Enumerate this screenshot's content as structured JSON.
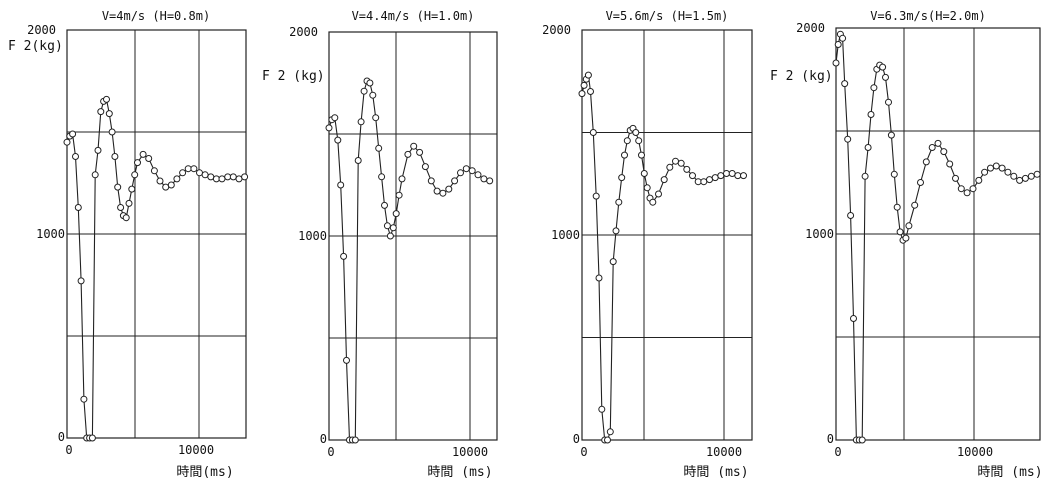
{
  "chart_data": [
    {
      "type": "line",
      "title": "V=4m/s (H=0.8m)",
      "ylabel": "F 2(kg)",
      "xlabel": "時間(ms)",
      "xlim": [
        0,
        12700
      ],
      "ylim": [
        0,
        2000
      ],
      "x_ticks": [
        "0",
        "10000"
      ],
      "y_ticks": [
        "0",
        "1000",
        "2000"
      ],
      "grid": true,
      "series": [
        {
          "x": [
            0,
            200,
            400,
            600,
            800,
            1000,
            1200,
            1400,
            1600,
            1800,
            2000,
            2200,
            2400,
            2600,
            2800,
            3000,
            3200,
            3400,
            3600,
            3800,
            4000,
            4200,
            4400,
            4600,
            4800,
            5000,
            5400,
            5800,
            6200,
            6600,
            7000,
            7400,
            7800,
            8200,
            8600,
            9000,
            9400,
            9800,
            10200,
            10600,
            11000,
            11400,
            11800,
            12200,
            12600
          ],
          "values": [
            1450,
            1480,
            1490,
            1380,
            1130,
            770,
            190,
            0,
            0,
            0,
            1290,
            1410,
            1600,
            1650,
            1660,
            1590,
            1500,
            1380,
            1230,
            1130,
            1090,
            1080,
            1150,
            1220,
            1290,
            1350,
            1390,
            1370,
            1310,
            1260,
            1230,
            1240,
            1270,
            1300,
            1320,
            1320,
            1300,
            1290,
            1280,
            1270,
            1270,
            1280,
            1280,
            1270,
            1280
          ]
        }
      ]
    },
    {
      "type": "line",
      "title": "V=4.4m/s (H=1.0m)",
      "ylabel": "F 2  (kg)",
      "xlabel": "時間  (ms)",
      "xlim": [
        0,
        11500
      ],
      "ylim": [
        0,
        2000
      ],
      "x_ticks": [
        "0",
        "10000"
      ],
      "y_ticks": [
        "0",
        "1000",
        "2000"
      ],
      "grid": true,
      "series": [
        {
          "x": [
            0,
            200,
            400,
            600,
            800,
            1000,
            1200,
            1400,
            1600,
            1800,
            2000,
            2200,
            2400,
            2600,
            2800,
            3000,
            3200,
            3400,
            3600,
            3800,
            4000,
            4200,
            4400,
            4600,
            4800,
            5000,
            5400,
            5800,
            6200,
            6600,
            7000,
            7400,
            7800,
            8200,
            8600,
            9000,
            9400,
            9800,
            10200,
            10600,
            11000
          ],
          "values": [
            1530,
            1570,
            1580,
            1470,
            1250,
            900,
            390,
            0,
            0,
            0,
            1370,
            1560,
            1710,
            1760,
            1750,
            1690,
            1580,
            1430,
            1290,
            1150,
            1050,
            1000,
            1040,
            1110,
            1200,
            1280,
            1400,
            1440,
            1410,
            1340,
            1270,
            1220,
            1210,
            1230,
            1270,
            1310,
            1330,
            1320,
            1300,
            1280,
            1270
          ]
        }
      ]
    },
    {
      "type": "line",
      "title": "V=5.6m/s (H=1.5m)",
      "ylabel": "",
      "xlabel": "時間  (ms)",
      "xlim": [
        0,
        12000
      ],
      "ylim": [
        0,
        2000
      ],
      "x_ticks": [
        "0",
        "10000"
      ],
      "y_ticks": [
        "0",
        "1000",
        "2000"
      ],
      "grid": true,
      "series": [
        {
          "x": [
            0,
            150,
            300,
            450,
            600,
            800,
            1000,
            1200,
            1400,
            1600,
            1800,
            2000,
            2200,
            2400,
            2600,
            2800,
            3000,
            3200,
            3400,
            3600,
            3800,
            4000,
            4200,
            4400,
            4600,
            4800,
            5000,
            5400,
            5800,
            6200,
            6600,
            7000,
            7400,
            7800,
            8200,
            8600,
            9000,
            9400,
            9800,
            10200,
            10600,
            11000,
            11400
          ],
          "values": [
            1690,
            1730,
            1760,
            1780,
            1700,
            1500,
            1190,
            790,
            150,
            0,
            0,
            40,
            870,
            1020,
            1160,
            1280,
            1390,
            1460,
            1510,
            1520,
            1500,
            1460,
            1390,
            1300,
            1230,
            1180,
            1160,
            1200,
            1270,
            1330,
            1360,
            1350,
            1320,
            1290,
            1260,
            1260,
            1270,
            1280,
            1290,
            1300,
            1300,
            1290,
            1290
          ]
        }
      ]
    },
    {
      "type": "line",
      "title": "V=6.3m/s(H=2.0m)",
      "ylabel": "F 2  (kg)",
      "xlabel": "時間  (ms)",
      "xlim": [
        0,
        14000
      ],
      "ylim": [
        0,
        2000
      ],
      "x_ticks": [
        "0",
        "10000"
      ],
      "y_ticks": [
        "0",
        "1000",
        "2000"
      ],
      "grid": true,
      "series": [
        {
          "x": [
            0,
            150,
            300,
            450,
            600,
            800,
            1000,
            1200,
            1400,
            1600,
            1800,
            2000,
            2200,
            2400,
            2600,
            2800,
            3000,
            3200,
            3400,
            3600,
            3800,
            4000,
            4200,
            4400,
            4600,
            4800,
            5000,
            5400,
            5800,
            6200,
            6600,
            7000,
            7400,
            7800,
            8200,
            8600,
            9000,
            9400,
            9800,
            10200,
            10600,
            11000,
            11400,
            11800,
            12200,
            12600,
            13000,
            13400,
            13800
          ],
          "values": [
            1830,
            1920,
            1970,
            1950,
            1730,
            1460,
            1090,
            590,
            0,
            0,
            0,
            1280,
            1420,
            1580,
            1710,
            1800,
            1820,
            1810,
            1760,
            1640,
            1480,
            1290,
            1130,
            1010,
            970,
            980,
            1040,
            1140,
            1250,
            1350,
            1420,
            1440,
            1400,
            1340,
            1270,
            1220,
            1200,
            1220,
            1260,
            1300,
            1320,
            1330,
            1320,
            1300,
            1280,
            1260,
            1270,
            1280,
            1290
          ]
        }
      ]
    }
  ]
}
